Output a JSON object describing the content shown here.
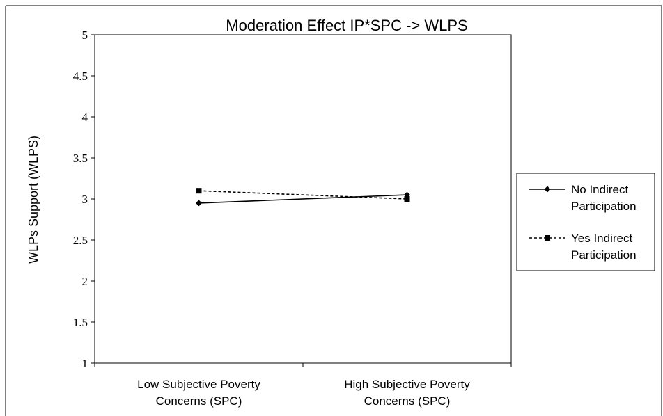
{
  "chart_data": {
    "type": "line",
    "title": "Moderation Effect IP*SPC -> WLPS",
    "xlabel": "",
    "ylabel": "WLPs Support (WLPS)",
    "categories": [
      [
        "Low Subjective Poverty",
        "Concerns (SPC)"
      ],
      [
        "High Subjective Poverty",
        "Concerns (SPC)"
      ]
    ],
    "ylim": [
      1,
      5
    ],
    "yticks": [
      "1",
      "1.5",
      "2",
      "2.5",
      "3",
      "3.5",
      "4",
      "4.5",
      "5"
    ],
    "grid": false,
    "legend_position": "right",
    "series": [
      {
        "name_lines": [
          "No Indirect",
          "Participation"
        ],
        "values": [
          2.95,
          3.05
        ],
        "line_style": "solid",
        "marker": "diamond",
        "color": "#000000"
      },
      {
        "name_lines": [
          "Yes Indirect",
          "Participation"
        ],
        "values": [
          3.1,
          3.0
        ],
        "line_style": "dashed",
        "marker": "square",
        "color": "#000000"
      }
    ]
  }
}
